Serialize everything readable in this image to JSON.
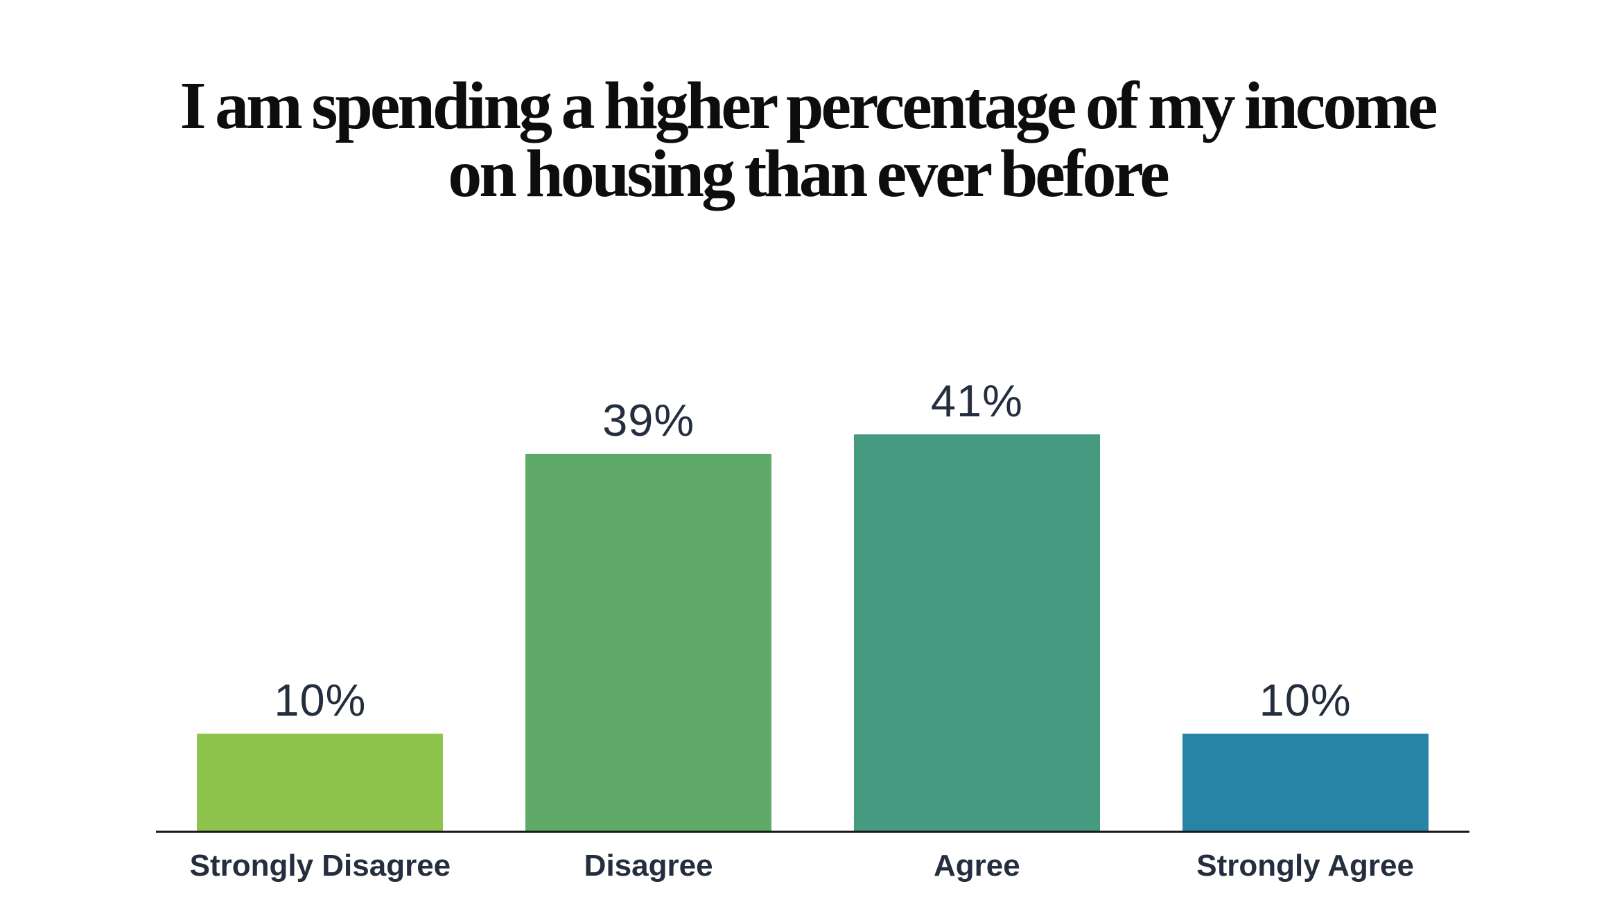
{
  "title": "I am spending a higher percentage of my income on housing than ever before",
  "title_lines": {
    "line1": "I am spending a higher percentage of my income",
    "line2": "on housing than ever before"
  },
  "colors": {
    "background": "#ffffff",
    "title_text": "#0d0d0d",
    "label_text": "#242e3e",
    "axis_line": "#191919"
  },
  "chart_data": {
    "type": "bar",
    "orientation": "vertical",
    "title": "I am spending a higher percentage of my income on housing than ever before",
    "categories": [
      "Strongly Disagree",
      "Disagree",
      "Agree",
      "Strongly Agree"
    ],
    "values": [
      10,
      39,
      41,
      10
    ],
    "value_labels": [
      "10%",
      "39%",
      "41%",
      "10%"
    ],
    "bar_colors": [
      "#8dc44d",
      "#5faa68",
      "#459a80",
      "#2884a7"
    ],
    "xlabel": "",
    "ylabel": "",
    "ylim": [
      0,
      45
    ],
    "grid": false,
    "legend": false,
    "value_label_position": "above-bar",
    "axis_shown": "x-baseline-only"
  }
}
